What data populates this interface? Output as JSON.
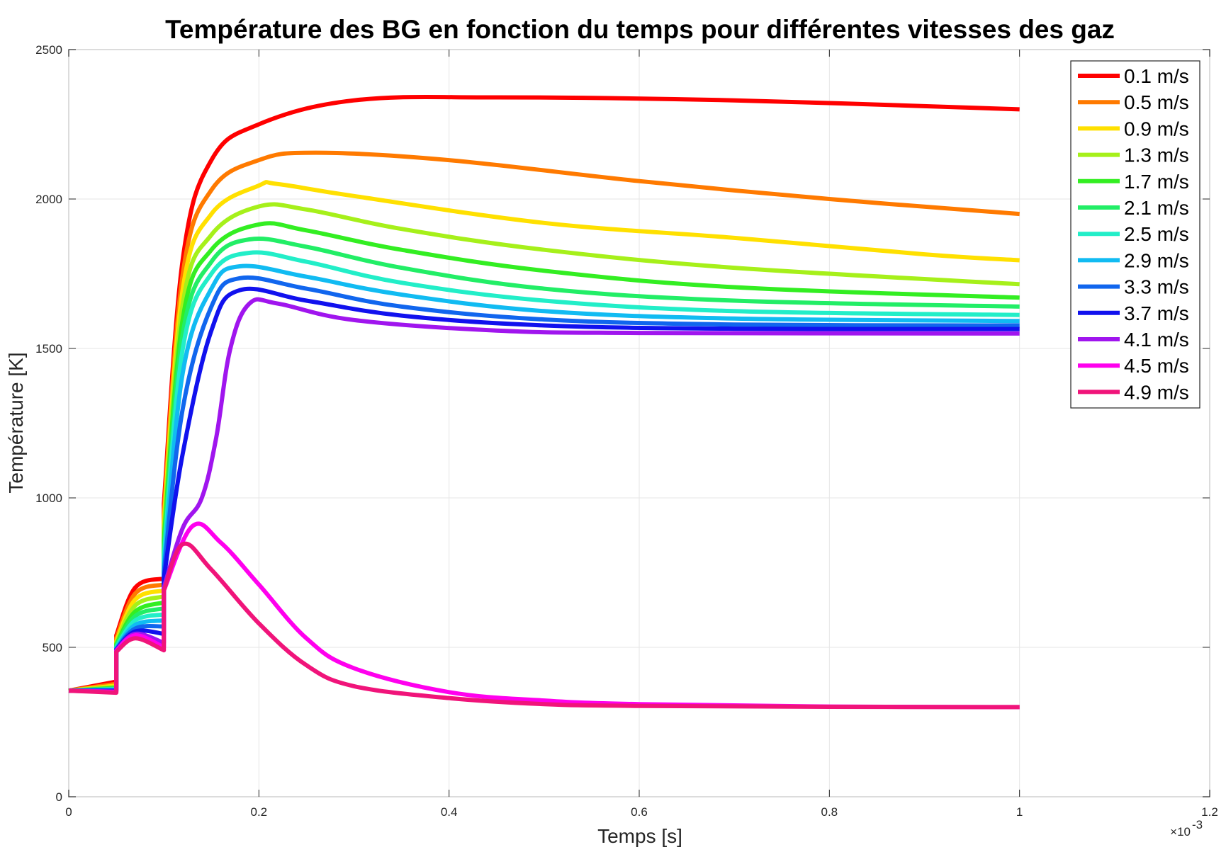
{
  "chart_data": {
    "type": "line",
    "title": "Température des BG en fonction du temps pour différentes vitesses des gaz",
    "xlabel": "Temps [s]",
    "ylabel": "Température [K]",
    "x_exponent_label": "×10",
    "x_exponent_power": "-3",
    "xlim": [
      0,
      1.2
    ],
    "ylim": [
      0,
      2500
    ],
    "x_ticks": [
      "0",
      "0.2",
      "0.4",
      "0.6",
      "0.8",
      "1",
      "1.2"
    ],
    "y_ticks": [
      "0",
      "500",
      "1000",
      "1500",
      "2000",
      "2500"
    ],
    "grid": true,
    "legend_position": "top-right",
    "series": [
      {
        "name": "0.1 m/s",
        "color": "#ff0000",
        "x": [
          0,
          0.05,
          0.05,
          0.07,
          0.1,
          0.1,
          0.12,
          0.15,
          0.2,
          0.3,
          0.45,
          0.7,
          1.0
        ],
        "y": [
          355,
          385,
          540,
          700,
          730,
          980,
          1800,
          2130,
          2250,
          2330,
          2340,
          2330,
          2300
        ]
      },
      {
        "name": "0.5 m/s",
        "color": "#ff7a00",
        "x": [
          0,
          0.05,
          0.05,
          0.07,
          0.1,
          0.1,
          0.12,
          0.15,
          0.2,
          0.26,
          0.4,
          0.6,
          0.8,
          1.0
        ],
        "y": [
          355,
          378,
          530,
          680,
          710,
          950,
          1750,
          2030,
          2130,
          2155,
          2130,
          2060,
          2000,
          1950
        ]
      },
      {
        "name": "0.9 m/s",
        "color": "#ffe000",
        "x": [
          0,
          0.05,
          0.05,
          0.07,
          0.1,
          0.1,
          0.12,
          0.15,
          0.2,
          0.22,
          0.3,
          0.5,
          0.7,
          0.9,
          1.0
        ],
        "y": [
          355,
          372,
          520,
          660,
          690,
          920,
          1700,
          1950,
          2045,
          2050,
          2010,
          1920,
          1870,
          1815,
          1795
        ]
      },
      {
        "name": "1.3 m/s",
        "color": "#a6f01a",
        "x": [
          0,
          0.05,
          0.05,
          0.07,
          0.1,
          0.1,
          0.12,
          0.15,
          0.2,
          0.25,
          0.35,
          0.5,
          0.7,
          1.0
        ],
        "y": [
          355,
          368,
          515,
          640,
          670,
          890,
          1650,
          1880,
          1975,
          1965,
          1900,
          1830,
          1770,
          1715
        ]
      },
      {
        "name": "1.7 m/s",
        "color": "#33ee22",
        "x": [
          0,
          0.05,
          0.05,
          0.07,
          0.1,
          0.1,
          0.12,
          0.15,
          0.2,
          0.25,
          0.35,
          0.5,
          0.7,
          1.0
        ],
        "y": [
          355,
          364,
          510,
          620,
          650,
          860,
          1600,
          1830,
          1915,
          1895,
          1830,
          1760,
          1705,
          1670
        ]
      },
      {
        "name": "2.1 m/s",
        "color": "#22ee66",
        "x": [
          0,
          0.05,
          0.05,
          0.07,
          0.1,
          0.1,
          0.12,
          0.15,
          0.19,
          0.25,
          0.35,
          0.5,
          0.7,
          1.0
        ],
        "y": [
          355,
          362,
          505,
          605,
          630,
          830,
          1550,
          1790,
          1865,
          1840,
          1770,
          1700,
          1660,
          1640
        ]
      },
      {
        "name": "2.5 m/s",
        "color": "#22eec8",
        "x": [
          0,
          0.05,
          0.05,
          0.07,
          0.1,
          0.1,
          0.12,
          0.15,
          0.19,
          0.25,
          0.35,
          0.5,
          0.7,
          1.0
        ],
        "y": [
          355,
          360,
          500,
          590,
          610,
          800,
          1500,
          1750,
          1820,
          1790,
          1720,
          1660,
          1625,
          1612
        ]
      },
      {
        "name": "2.9 m/s",
        "color": "#11bbf2",
        "x": [
          0,
          0.05,
          0.05,
          0.07,
          0.1,
          0.1,
          0.12,
          0.15,
          0.18,
          0.25,
          0.35,
          0.5,
          0.7,
          1.0
        ],
        "y": [
          355,
          358,
          497,
          575,
          590,
          770,
          1420,
          1700,
          1775,
          1740,
          1680,
          1625,
          1600,
          1592
        ]
      },
      {
        "name": "3.3 m/s",
        "color": "#1166ee",
        "x": [
          0,
          0.05,
          0.05,
          0.07,
          0.1,
          0.1,
          0.12,
          0.15,
          0.18,
          0.25,
          0.35,
          0.5,
          0.7,
          1.0
        ],
        "y": [
          355,
          356,
          494,
          563,
          570,
          750,
          1300,
          1640,
          1735,
          1700,
          1640,
          1597,
          1580,
          1577
        ]
      },
      {
        "name": "3.7 m/s",
        "color": "#1111ee",
        "x": [
          0,
          0.05,
          0.05,
          0.07,
          0.1,
          0.1,
          0.12,
          0.15,
          0.18,
          0.25,
          0.35,
          0.5,
          0.7,
          1.0
        ],
        "y": [
          355,
          354,
          492,
          553,
          545,
          730,
          1150,
          1560,
          1695,
          1660,
          1610,
          1577,
          1566,
          1565
        ]
      },
      {
        "name": "4.1 m/s",
        "color": "#a015ee",
        "x": [
          0,
          0.05,
          0.05,
          0.07,
          0.1,
          0.1,
          0.12,
          0.14,
          0.155,
          0.17,
          0.19,
          0.22,
          0.3,
          0.45,
          0.6,
          1.0
        ],
        "y": [
          355,
          352,
          490,
          545,
          515,
          700,
          900,
          1000,
          1200,
          1500,
          1650,
          1650,
          1595,
          1560,
          1552,
          1550
        ]
      },
      {
        "name": "4.5 m/s",
        "color": "#ff00ee",
        "x": [
          0,
          0.05,
          0.05,
          0.07,
          0.1,
          0.1,
          0.13,
          0.16,
          0.2,
          0.25,
          0.3,
          0.4,
          0.5,
          0.6,
          0.8,
          1.0
        ],
        "y": [
          355,
          350,
          488,
          540,
          500,
          690,
          905,
          850,
          710,
          530,
          430,
          350,
          322,
          310,
          302,
          300
        ]
      },
      {
        "name": "4.9 m/s",
        "color": "#f0147a",
        "x": [
          0,
          0.05,
          0.05,
          0.07,
          0.1,
          0.1,
          0.12,
          0.15,
          0.2,
          0.25,
          0.3,
          0.4,
          0.5,
          0.6,
          0.8,
          1.0
        ],
        "y": [
          355,
          348,
          485,
          530,
          490,
          690,
          845,
          760,
          580,
          440,
          370,
          330,
          310,
          304,
          301,
          300
        ]
      }
    ]
  }
}
